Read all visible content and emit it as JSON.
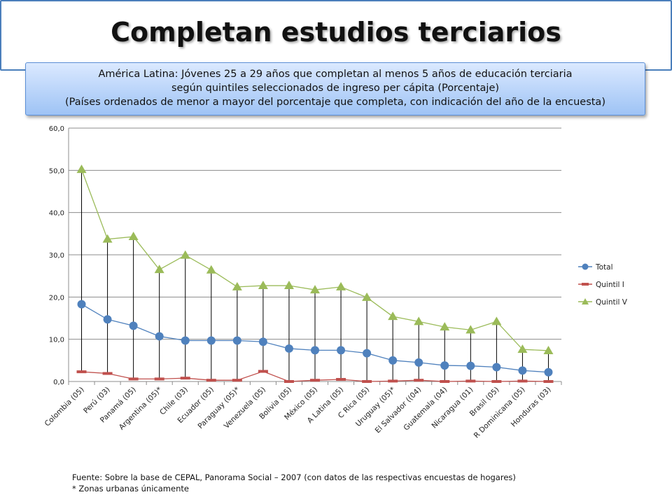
{
  "title": "Completan estudios terciarios",
  "subtitle": [
    "América Latina: Jóvenes 25 a 29 años que completan al menos 5 años de educación terciaria",
    "según quintiles seleccionados de ingreso per cápita (Porcentaje)",
    "(Países ordenados de menor a mayor del porcentaje que completa, con indicación del año de la encuesta)"
  ],
  "footer": {
    "source": "Fuente: Sobre la base de CEPAL, Panorama Social – 2007 (con datos de las respectivas encuestas de hogares)",
    "note": "* Zonas urbanas únicamente"
  },
  "chart_data": {
    "type": "line",
    "categories": [
      "Colombia (05)",
      "Perú (03)",
      "Panamá (05)",
      "Argentina (05)*",
      "Chile (03)",
      "Ecuador (05)",
      "Paraguay (05)*",
      "Venezuela (05)",
      "Bolivia (05)",
      "México (05)",
      "A Latina (05)",
      "C Rica (05)",
      "Uruguay (05)*",
      "El Salvador ((04)",
      "Guatemala (04)",
      "Nicaragua (01)",
      "Brasil (05)",
      "R Dominicana (05)",
      "Honduras (03)"
    ],
    "series": [
      {
        "name": "Total",
        "color": "#4f81bd",
        "marker": "circle",
        "values": [
          18.3,
          14.7,
          13.2,
          10.7,
          9.7,
          9.7,
          9.7,
          9.4,
          7.8,
          7.4,
          7.4,
          6.7,
          5.0,
          4.5,
          3.8,
          3.7,
          3.4,
          2.6,
          2.2
        ]
      },
      {
        "name": "Quintil I",
        "color": "#c0504d",
        "marker": "dash",
        "values": [
          2.3,
          1.9,
          0.6,
          0.6,
          0.8,
          0.3,
          0.3,
          2.4,
          0.0,
          0.3,
          0.5,
          0.0,
          0.1,
          0.3,
          0.0,
          0.1,
          0.0,
          0.1,
          0.0
        ]
      },
      {
        "name": "Quintil V",
        "color": "#9bbb59",
        "marker": "triangle",
        "values": [
          50.2,
          33.7,
          34.3,
          26.5,
          29.9,
          26.4,
          22.4,
          22.7,
          22.7,
          21.7,
          22.4,
          19.9,
          15.4,
          14.2,
          12.9,
          12.2,
          14.2,
          7.6,
          7.3
        ]
      }
    ],
    "y_ticks": [
      "0,0",
      "10,0",
      "20,0",
      "30,0",
      "40,0",
      "50,0",
      "60,0"
    ],
    "ylim": [
      0,
      60
    ],
    "grid": true,
    "legend_position": "right",
    "range_lines": true
  }
}
